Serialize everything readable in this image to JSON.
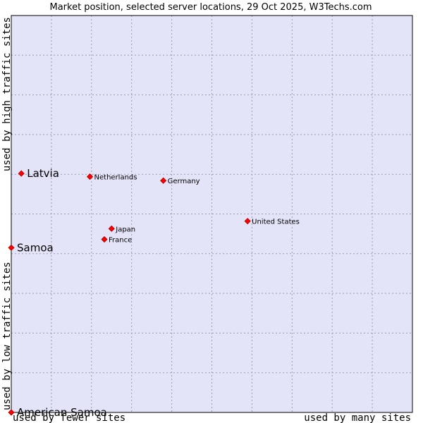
{
  "chart_data": {
    "type": "scatter",
    "title": "Market position, selected server locations, 29 Oct 2025, W3Techs.com",
    "xlabel_left": "used by fewer sites",
    "xlabel_right": "used by many sites",
    "ylabel_bottom": "used by low traffic sites",
    "ylabel_top": "used by high traffic sites",
    "xlim": [
      0,
      100
    ],
    "ylim": [
      0,
      100
    ],
    "grid": true,
    "colors": {
      "plot_bg": "#e4e4f8",
      "point": "#ff0000",
      "point_edge": "#aa0000",
      "border": "#000000"
    },
    "points": [
      {
        "name": "United States",
        "x": 58.9,
        "y": 48.2,
        "emphasis": false
      },
      {
        "name": "Germany",
        "x": 37.9,
        "y": 58.4,
        "emphasis": false
      },
      {
        "name": "Netherlands",
        "x": 19.6,
        "y": 59.4,
        "emphasis": false
      },
      {
        "name": "Japan",
        "x": 25.0,
        "y": 46.3,
        "emphasis": false
      },
      {
        "name": "France",
        "x": 23.2,
        "y": 43.6,
        "emphasis": false
      },
      {
        "name": "Latvia",
        "x": 2.5,
        "y": 60.2,
        "emphasis": true
      },
      {
        "name": "Samoa",
        "x": 0.0,
        "y": 41.5,
        "emphasis": true
      },
      {
        "name": "American Samoa",
        "x": 0.0,
        "y": 0.0,
        "emphasis": true
      }
    ]
  }
}
